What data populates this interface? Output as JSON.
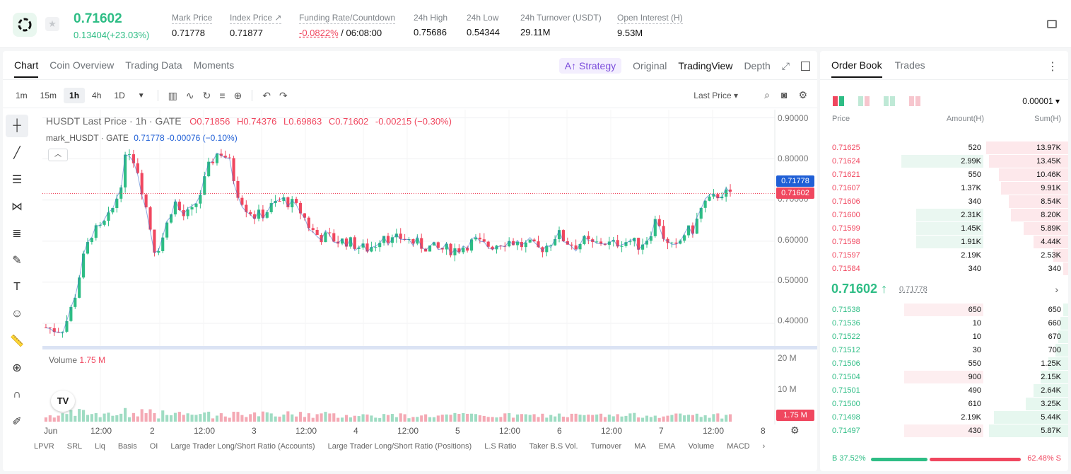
{
  "header": {
    "last_price": "0.71602",
    "change": "0.13404(+23.03%)",
    "stats": [
      {
        "label": "Mark Price",
        "value": "0.71778"
      },
      {
        "label": "Index Price ↗",
        "value": "0.71877"
      },
      {
        "label": "Funding Rate/Countdown",
        "value_red": "-0.0822%",
        "value": " / 06:08:00"
      },
      {
        "label": "24h High",
        "value": "0.75686"
      },
      {
        "label": "24h Low",
        "value": "0.54344"
      },
      {
        "label": "24h Turnover (USDT)",
        "value": "29.11M"
      },
      {
        "label": "Open Interest (H)",
        "value": "9.53M"
      }
    ],
    "colors": {
      "up": "#2ebd85",
      "down": "#f0475f"
    }
  },
  "chart_tabs": [
    "Chart",
    "Coin Overview",
    "Trading Data",
    "Moments"
  ],
  "view_tabs": {
    "strategy": "A↑ Strategy",
    "original": "Original",
    "tradingview": "TradingView",
    "depth": "Depth"
  },
  "intervals": [
    "1m",
    "15m",
    "1h",
    "4h",
    "1D"
  ],
  "active_interval": "1h",
  "last_price_select": "Last Price",
  "legend": {
    "symbol": "HUSDT Last Price · 1h · GATE",
    "o": "O0.71856",
    "h": "H0.74376",
    "l": "L0.69863",
    "c": "C0.71602",
    "chg": "-0.00215 (−0.30%)",
    "mark_label": "mark_HUSDT · GATE",
    "mark_vals": "0.71778  -0.00076 (−0.10%)"
  },
  "volume": {
    "label": "Volume",
    "value": "1.75 M"
  },
  "tv_logo": "TV",
  "y_axis": [
    "0.90000",
    "0.80000",
    "0.70000",
    "0.60000",
    "0.50000",
    "0.40000"
  ],
  "vol_axis": [
    "20 M",
    "10 M"
  ],
  "price_tags": {
    "mark": "0.71778",
    "last": "0.71602",
    "vol": "1.75 M"
  },
  "x_axis": [
    "Jun",
    "12:00",
    "2",
    "12:00",
    "3",
    "12:00",
    "4",
    "12:00",
    "5",
    "12:00",
    "6",
    "12:00",
    "7",
    "12:00",
    "8"
  ],
  "indicators": [
    "LPVR",
    "SRL",
    "Liq",
    "Basis",
    "OI",
    "Large Trader Long/Short Ratio (Accounts)",
    "Large Trader Long/Short Ratio (Positions)",
    "L.S Ratio",
    "Taker B.S Vol.",
    "Turnover",
    "MA",
    "EMA",
    "Volume",
    "MACD"
  ],
  "chart_data": {
    "type": "candlestick",
    "title": "HUSDT Last Price · 1h · GATE",
    "ylim": [
      0.35,
      0.92
    ],
    "vol_ylim": [
      0,
      22000000
    ],
    "x_range": [
      "Jun 1",
      "Jun 8"
    ],
    "close_path": [
      0.39,
      0.385,
      0.39,
      0.45,
      0.55,
      0.62,
      0.63,
      0.66,
      0.72,
      0.83,
      0.78,
      0.68,
      0.57,
      0.62,
      0.7,
      0.66,
      0.67,
      0.72,
      0.79,
      0.82,
      0.8,
      0.72,
      0.68,
      0.66,
      0.67,
      0.69,
      0.7,
      0.69,
      0.67,
      0.63,
      0.61,
      0.61,
      0.6,
      0.6,
      0.59,
      0.58,
      0.59,
      0.62,
      0.6,
      0.61,
      0.6,
      0.59,
      0.585,
      0.58,
      0.58,
      0.58,
      0.59,
      0.6,
      0.59,
      0.59,
      0.6,
      0.6,
      0.59,
      0.59,
      0.58,
      0.59,
      0.62,
      0.6,
      0.59,
      0.6,
      0.59,
      0.6,
      0.59,
      0.6,
      0.6,
      0.59,
      0.61,
      0.66,
      0.59,
      0.58,
      0.62,
      0.63,
      0.69,
      0.7,
      0.72,
      0.71
    ],
    "last": 0.71602,
    "mark": 0.71778
  },
  "orderbook": {
    "tabs": [
      "Order Book",
      "Trades"
    ],
    "precision": "0.00001",
    "headers": {
      "price": "Price",
      "amount": "Amount(H)",
      "sum": "Sum(H)"
    },
    "asks": [
      {
        "price": "0.71625",
        "amount": "520",
        "sum": "13.97K",
        "amt_frac": 0.0,
        "sum_frac": 0.33
      },
      {
        "price": "0.71624",
        "amount": "2.99K",
        "sum": "13.45K",
        "amt_frac": 0.33,
        "sum_frac": 0.32
      },
      {
        "price": "0.71621",
        "amount": "550",
        "sum": "10.46K",
        "amt_frac": 0.0,
        "sum_frac": 0.28
      },
      {
        "price": "0.71607",
        "amount": "1.37K",
        "sum": "9.91K",
        "amt_frac": 0.0,
        "sum_frac": 0.27
      },
      {
        "price": "0.71606",
        "amount": "340",
        "sum": "8.54K",
        "amt_frac": 0.0,
        "sum_frac": 0.24
      },
      {
        "price": "0.71600",
        "amount": "2.31K",
        "sum": "8.20K",
        "amt_frac": 0.27,
        "sum_frac": 0.23
      },
      {
        "price": "0.71599",
        "amount": "1.45K",
        "sum": "5.89K",
        "amt_frac": 0.27,
        "sum_frac": 0.18
      },
      {
        "price": "0.71598",
        "amount": "1.91K",
        "sum": "4.44K",
        "amt_frac": 0.27,
        "sum_frac": 0.14
      },
      {
        "price": "0.71597",
        "amount": "2.19K",
        "sum": "2.53K",
        "amt_frac": 0.0,
        "sum_frac": 0.06
      },
      {
        "price": "0.71584",
        "amount": "340",
        "sum": "340",
        "amt_frac": 0.0,
        "sum_frac": 0.02
      }
    ],
    "mid_price": "0.71602 ↑",
    "mid_mark": "0.71778",
    "bids": [
      {
        "price": "0.71538",
        "amount": "650",
        "sum": "650",
        "amt_frac": 0.32,
        "sum_frac": 0.02
      },
      {
        "price": "0.71536",
        "amount": "10",
        "sum": "660",
        "amt_frac": 0.0,
        "sum_frac": 0.03
      },
      {
        "price": "0.71522",
        "amount": "10",
        "sum": "670",
        "amt_frac": 0.0,
        "sum_frac": 0.04
      },
      {
        "price": "0.71512",
        "amount": "30",
        "sum": "700",
        "amt_frac": 0.0,
        "sum_frac": 0.05
      },
      {
        "price": "0.71506",
        "amount": "550",
        "sum": "1.25K",
        "amt_frac": 0.0,
        "sum_frac": 0.08
      },
      {
        "price": "0.71504",
        "amount": "900",
        "sum": "2.15K",
        "amt_frac": 0.32,
        "sum_frac": 0.11
      },
      {
        "price": "0.71501",
        "amount": "490",
        "sum": "2.64K",
        "amt_frac": 0.0,
        "sum_frac": 0.14
      },
      {
        "price": "0.71500",
        "amount": "610",
        "sum": "3.25K",
        "amt_frac": 0.0,
        "sum_frac": 0.17
      },
      {
        "price": "0.71498",
        "amount": "2.19K",
        "sum": "5.44K",
        "amt_frac": 0.0,
        "sum_frac": 0.3
      },
      {
        "price": "0.71497",
        "amount": "430",
        "sum": "5.87K",
        "amt_frac": 0.32,
        "sum_frac": 0.32
      }
    ],
    "buy_ratio": "B 37.52%",
    "sell_ratio": "62.48% S",
    "buy_frac": 0.3752
  }
}
